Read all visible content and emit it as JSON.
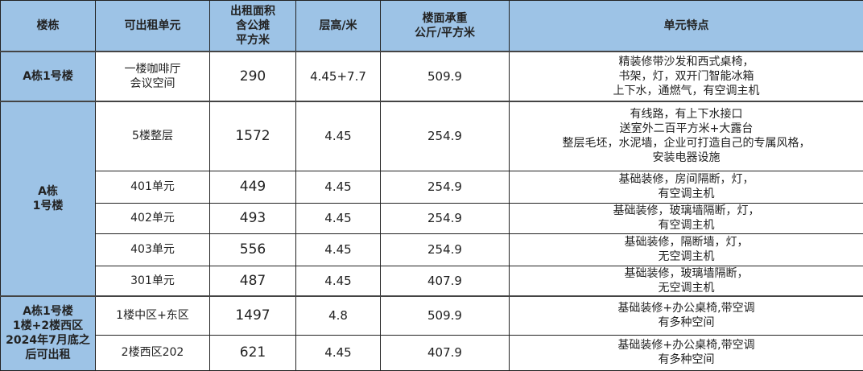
{
  "headers": [
    [
      "楼栋"
    ],
    [
      "可出租单元"
    ],
    [
      "出租面积",
      "含公摊",
      "平方米"
    ],
    [
      "层高/米"
    ],
    [
      "楼面承重",
      "公斤/平方米"
    ],
    [
      "单元特点"
    ]
  ],
  "colors": {
    "header_bg": "#9dc3e6",
    "building_bg": "#9dc3e6",
    "border": "#222222"
  },
  "groups": [
    {
      "building": [
        "A栋1号楼"
      ],
      "rows": [
        {
          "unit": [
            "一楼咖啡厅",
            "会议空间"
          ],
          "area": "290",
          "height": "4.45+7.7",
          "load": "509.9",
          "features": [
            "精装修带沙发和西式桌椅，",
            "书架，灯，双开门智能冰箱",
            "上下水，通燃气，有空调主机"
          ]
        }
      ]
    },
    {
      "building": [
        "A栋",
        "1号楼"
      ],
      "rows": [
        {
          "unit": [
            "5楼整层"
          ],
          "area": "1572",
          "height": "4.45",
          "load": "254.9",
          "features": [
            "有线路，有上下水接口",
            "送室外二百平方米+大露台",
            "整层毛坯，水泥墙，企业可打造自己的专属风格，",
            "安装电器设施"
          ]
        },
        {
          "unit": [
            "401单元"
          ],
          "area": "449",
          "height": "4.45",
          "load": "254.9",
          "features": [
            "基础装修，房间隔断，灯，",
            "有空调主机"
          ]
        },
        {
          "unit": [
            "402单元"
          ],
          "area": "493",
          "height": "4.45",
          "load": "254.9",
          "features": [
            "基础装修，玻璃墙隔断，灯，",
            "有空调主机"
          ]
        },
        {
          "unit": [
            "403单元"
          ],
          "area": "556",
          "height": "4.45",
          "load": "254.9",
          "features": [
            "基础装修，隔断墙，灯，",
            "无空调主机"
          ]
        },
        {
          "unit": [
            "301单元"
          ],
          "area": "487",
          "height": "4.45",
          "load": "407.9",
          "features": [
            "基础装修，玻璃墙隔断，",
            "无空调主机"
          ]
        }
      ]
    },
    {
      "building": [
        "A栋1号楼",
        "1楼+2楼西区",
        "2024年7月底之",
        "后可出租"
      ],
      "rows": [
        {
          "unit": [
            "1楼中区+东区"
          ],
          "area": "1497",
          "height": "4.8",
          "load": "509.9",
          "features": [
            "基础装修+办公桌椅,带空调",
            "有多种空间"
          ]
        },
        {
          "unit": [
            "2楼西区202"
          ],
          "area": "621",
          "height": "4.45",
          "load": "407.9",
          "features": [
            "基础装修+办公桌椅,带空调",
            "有多种空间"
          ]
        }
      ]
    }
  ]
}
